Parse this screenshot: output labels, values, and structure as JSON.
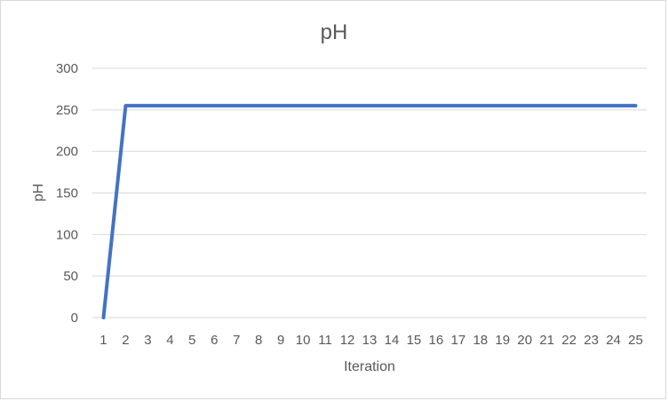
{
  "chart_data": {
    "type": "line",
    "title": "pH",
    "xlabel": "Iteration",
    "ylabel": "pH",
    "categories": [
      "1",
      "2",
      "3",
      "4",
      "5",
      "6",
      "7",
      "8",
      "9",
      "10",
      "11",
      "12",
      "13",
      "14",
      "15",
      "16",
      "17",
      "18",
      "19",
      "20",
      "21",
      "22",
      "23",
      "24",
      "25"
    ],
    "series": [
      {
        "values": [
          0,
          255,
          255,
          255,
          255,
          255,
          255,
          255,
          255,
          255,
          255,
          255,
          255,
          255,
          255,
          255,
          255,
          255,
          255,
          255,
          255,
          255,
          255,
          255,
          255
        ],
        "color": "#4472c4"
      }
    ],
    "ylim": [
      0,
      300
    ],
    "yticks": [
      0,
      50,
      100,
      150,
      200,
      250,
      300
    ],
    "grid": true,
    "legend": "none"
  }
}
